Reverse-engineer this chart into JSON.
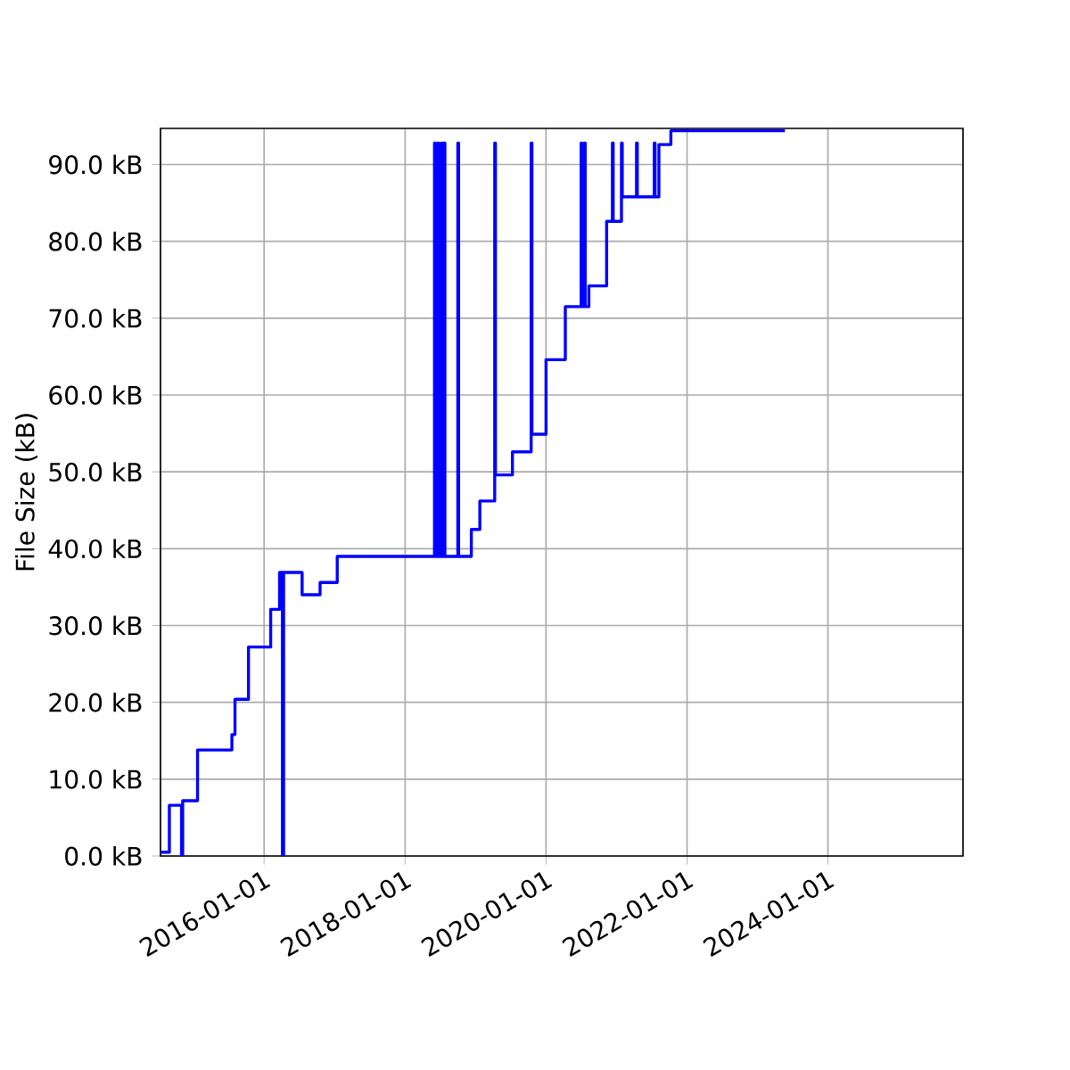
{
  "chart_data": {
    "type": "step",
    "ylabel": "File Size (kB)",
    "color": "#0000ff",
    "grid": true,
    "xlim": [
      "2014-07-13",
      "2025-12-01"
    ],
    "xticks": [
      "2016-01-01",
      "2018-01-01",
      "2020-01-01",
      "2022-01-01",
      "2024-01-01"
    ],
    "ylim": [
      0,
      94.7
    ],
    "yticks": [
      {
        "value": 0,
        "label": "0.0 kB"
      },
      {
        "value": 10,
        "label": "10.0 kB"
      },
      {
        "value": 20,
        "label": "20.0 kB"
      },
      {
        "value": 30,
        "label": "30.0 kB"
      },
      {
        "value": 40,
        "label": "40.0 kB"
      },
      {
        "value": 50,
        "label": "50.0 kB"
      },
      {
        "value": 60,
        "label": "60.0 kB"
      },
      {
        "value": 70,
        "label": "70.0 kB"
      },
      {
        "value": 80,
        "label": "80.0 kB"
      },
      {
        "value": 90,
        "label": "90.0 kB"
      }
    ],
    "x": [
      "2014-07-13",
      "2014-08-28",
      "2014-10-30",
      "2014-11-05",
      "2015-01-21",
      "2015-07-18",
      "2015-08-03",
      "2015-10-12",
      "2016-02-04",
      "2016-03-21",
      "2016-04-05",
      "2016-04-11",
      "2016-07-16",
      "2016-10-17",
      "2017-01-14",
      "2018-06-02",
      "2018-06-06",
      "2018-06-20",
      "2018-06-24",
      "2018-07-08",
      "2018-07-12",
      "2018-07-22",
      "2018-07-26",
      "2018-10-01",
      "2018-10-05",
      "2018-12-10",
      "2019-01-23",
      "2019-04-10",
      "2019-04-14",
      "2019-07-11",
      "2019-10-16",
      "2019-10-20",
      "2020-01-01",
      "2020-04-10",
      "2020-07-01",
      "2020-07-05",
      "2020-07-18",
      "2020-07-22",
      "2020-08-10",
      "2020-11-10",
      "2020-12-10",
      "2020-12-14",
      "2021-01-26",
      "2021-01-30",
      "2021-04-14",
      "2021-04-18",
      "2021-07-15",
      "2021-07-19",
      "2021-08-08",
      "2021-10-09",
      "2023-05-23"
    ],
    "values": [
      0.5,
      6.6,
      0,
      7.2,
      13.8,
      15.8,
      20.4,
      27.2,
      32.1,
      36.9,
      0,
      36.9,
      34.0,
      35.6,
      39.0,
      92.8,
      39.0,
      92.8,
      39.0,
      92.8,
      39.0,
      92.8,
      39.0,
      92.8,
      39.0,
      42.5,
      46.2,
      92.8,
      49.6,
      52.6,
      92.8,
      54.9,
      64.6,
      71.5,
      92.8,
      71.5,
      92.8,
      71.5,
      74.2,
      82.6,
      92.8,
      82.6,
      92.8,
      85.8,
      92.8,
      85.8,
      92.8,
      85.8,
      92.6,
      94.4,
      94.4
    ]
  }
}
